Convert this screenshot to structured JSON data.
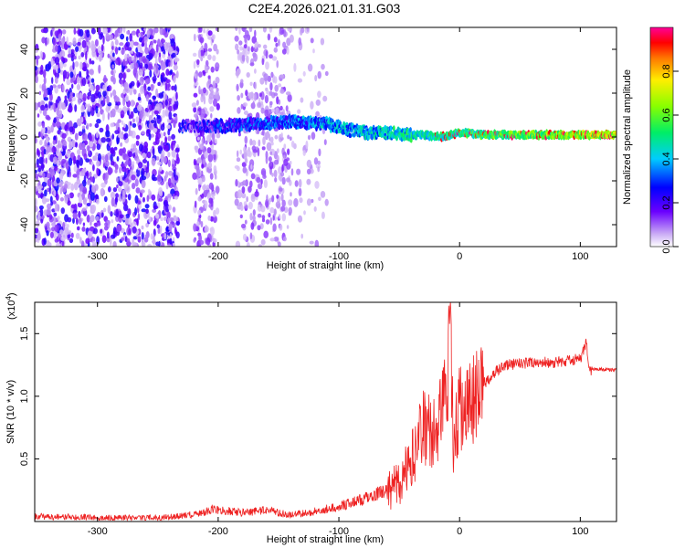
{
  "title": "C2E4.2026.021.01.31.G03",
  "chart_data": [
    {
      "type": "heatmap",
      "xlabel": "Height of straight line (km)",
      "ylabel": "Frequency (Hz)",
      "xlim": [
        -352,
        130
      ],
      "ylim": [
        -50,
        50
      ],
      "xticks": [
        -300,
        -200,
        -100,
        0,
        100
      ],
      "yticks": [
        -40,
        -20,
        0,
        20,
        40
      ],
      "colorbar": {
        "label": "Normalized spectral amplitude",
        "range": [
          0,
          1
        ],
        "ticks": [
          0.0,
          0.2,
          0.4,
          0.6,
          0.8
        ],
        "tick_labels": [
          "0.0",
          "0.2",
          "0.4",
          "0.6",
          "0.8"
        ]
      },
      "signal_track": [
        {
          "x": -230,
          "y": 5
        },
        {
          "x": -200,
          "y": 5
        },
        {
          "x": -170,
          "y": 6
        },
        {
          "x": -140,
          "y": 7
        },
        {
          "x": -110,
          "y": 6
        },
        {
          "x": -90,
          "y": 3
        },
        {
          "x": -75,
          "y": 2
        },
        {
          "x": -60,
          "y": 2
        },
        {
          "x": -45,
          "y": 1
        },
        {
          "x": -30,
          "y": 1
        },
        {
          "x": -15,
          "y": 0
        },
        {
          "x": 0,
          "y": 2
        },
        {
          "x": 20,
          "y": 1
        },
        {
          "x": 50,
          "y": 1
        },
        {
          "x": 80,
          "y": 1
        },
        {
          "x": 110,
          "y": 1
        },
        {
          "x": 130,
          "y": 1
        }
      ]
    },
    {
      "type": "line",
      "xlabel": "Height of straight line (km)",
      "ylabel": "SNR (10 * v/v)",
      "y_multiplier": "(x10",
      "y_multiplier_exp": "4",
      "y_multiplier_close": ")",
      "xlim": [
        -352,
        130
      ],
      "ylim": [
        0,
        1.75
      ],
      "xticks": [
        -300,
        -200,
        -100,
        0,
        100
      ],
      "yticks": [
        0.5,
        1.0,
        1.5
      ],
      "ytick_labels": [
        "0.5",
        "1.0",
        "1.5"
      ],
      "series": [
        {
          "color": "#ee2222",
          "x": [
            -352,
            -300,
            -250,
            -215,
            -205,
            -180,
            -160,
            -140,
            -120,
            -100,
            -80,
            -60,
            -50,
            -40,
            -30,
            -20,
            -15,
            -10,
            -8,
            -5,
            0,
            10,
            20,
            30,
            40,
            60,
            80,
            100,
            105,
            108,
            112,
            130
          ],
          "y": [
            0.04,
            0.03,
            0.03,
            0.06,
            0.1,
            0.07,
            0.09,
            0.05,
            0.08,
            0.12,
            0.18,
            0.25,
            0.3,
            0.5,
            0.75,
            0.7,
            0.85,
            1.1,
            1.75,
            0.6,
            0.9,
            0.95,
            1.1,
            1.2,
            1.25,
            1.27,
            1.27,
            1.3,
            1.42,
            1.2,
            1.22,
            1.21
          ]
        }
      ]
    }
  ]
}
